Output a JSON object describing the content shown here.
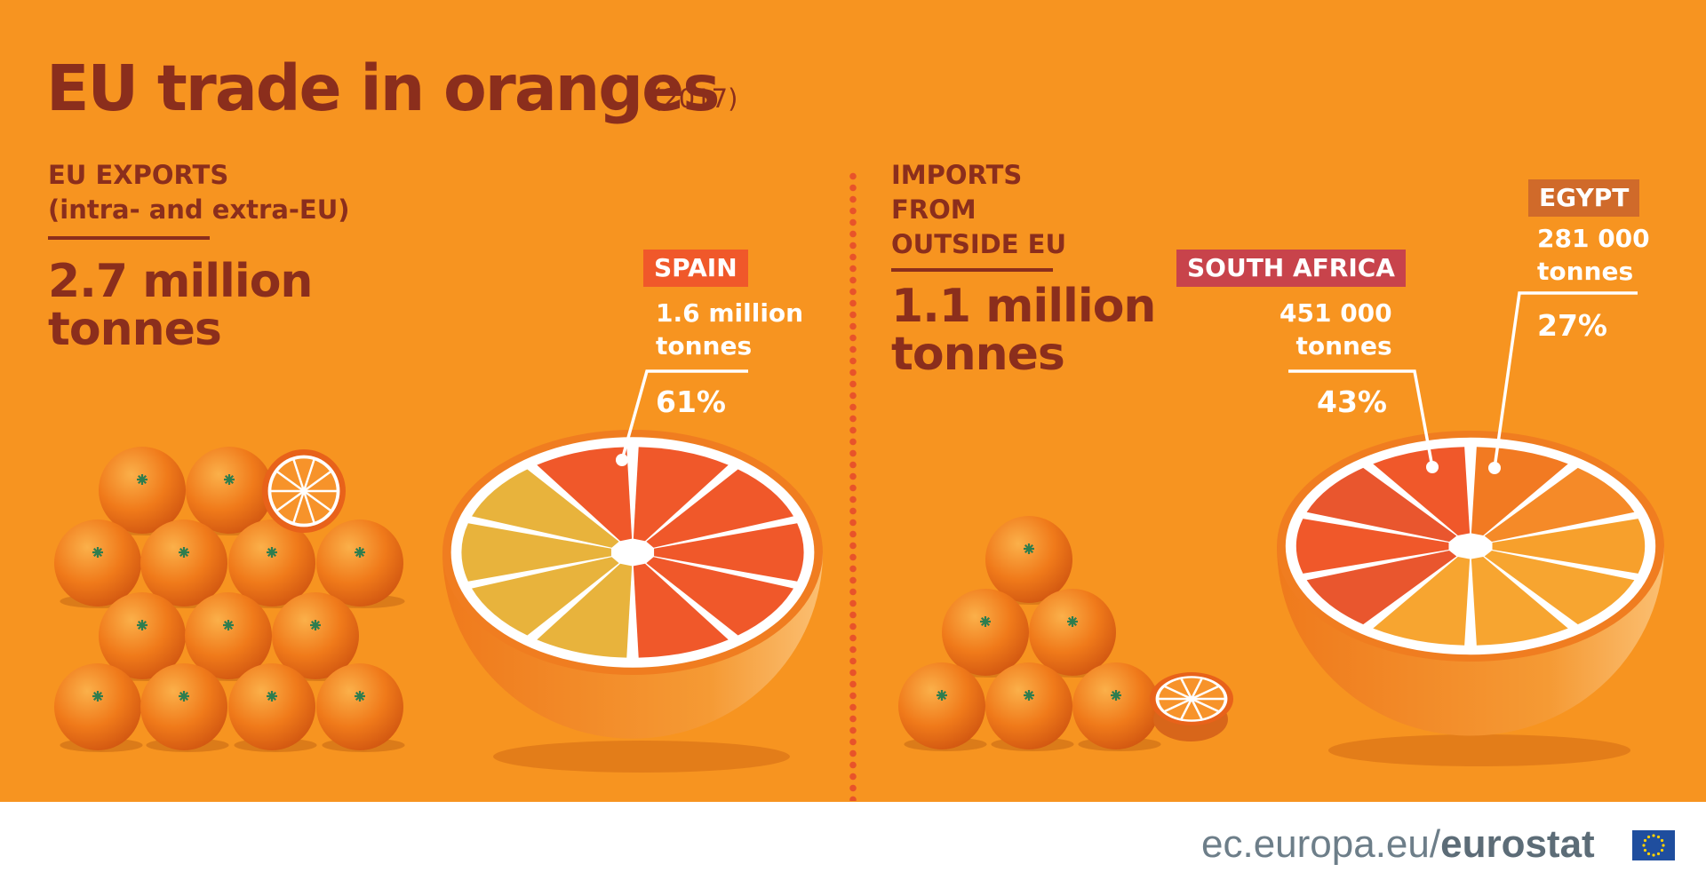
{
  "title": "EU trade in oranges",
  "year": "(2017)",
  "colors": {
    "background": "#f79420",
    "heading": "#8b2e1c",
    "spain": "#f0582a",
    "south_africa": "#c8434b",
    "egypt": "#d06a2a",
    "other": "#e8b33c"
  },
  "exports": {
    "heading": "EU EXPORTS\n(intra- and extra-EU)",
    "total": "2.7 million\ntonnes"
  },
  "imports": {
    "heading": "IMPORTS\nFROM\nOUTSIDE EU",
    "total": "1.1 million\ntonnes"
  },
  "chart_data": [
    {
      "type": "pie",
      "title": "EU EXPORTS (intra- and extra-EU)",
      "total": "2.7 million tonnes",
      "slices": [
        {
          "label": "SPAIN",
          "amount": "1.6 million\ntonnes",
          "value": 61,
          "display": "61%"
        }
      ]
    },
    {
      "type": "pie",
      "title": "IMPORTS FROM OUTSIDE EU",
      "total": "1.1 million tonnes",
      "slices": [
        {
          "label": "SOUTH AFRICA",
          "amount": "451 000\ntonnes",
          "value": 43,
          "display": "43%"
        },
        {
          "label": "EGYPT",
          "amount": "281 000\ntonnes",
          "value": 27,
          "display": "27%"
        }
      ]
    }
  ],
  "footer": {
    "site": "ec.europa.eu/",
    "brand": "eurostat"
  }
}
